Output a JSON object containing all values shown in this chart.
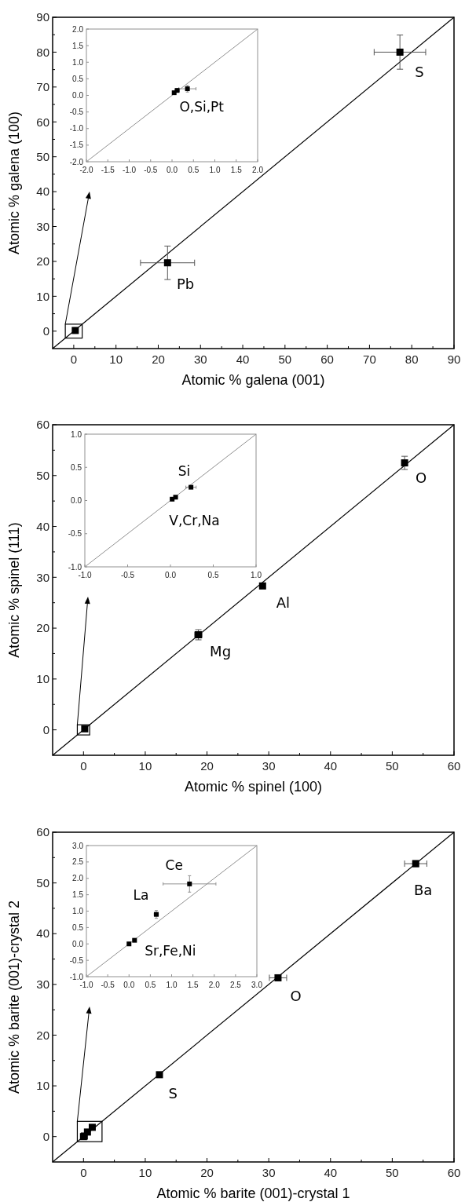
{
  "chart_data": [
    {
      "type": "scatter",
      "xlabel": "Atomic % galena (001)",
      "ylabel": "Atomic % galena (100)",
      "xlim": [
        -5,
        90
      ],
      "ylim": [
        -5,
        90
      ],
      "marker": "square",
      "xticks": [
        0,
        {
          "value": 5,
          "label": null
        },
        10,
        {
          "value": 15,
          "label": null
        },
        20,
        {
          "value": 25,
          "label": null
        },
        30,
        {
          "value": 35,
          "label": null
        },
        40,
        {
          "value": 45,
          "label": null
        },
        50,
        {
          "value": 55,
          "label": null
        },
        60,
        {
          "value": 65,
          "label": null
        },
        70,
        {
          "value": 75,
          "label": null
        },
        80,
        {
          "value": 85,
          "label": null
        },
        90
      ],
      "yticks": [
        0,
        {
          "value": 5,
          "label": null
        },
        10,
        {
          "value": 15,
          "label": null
        },
        20,
        {
          "value": 25,
          "label": null
        },
        30,
        {
          "value": 35,
          "label": null
        },
        40,
        {
          "value": 45,
          "label": null
        },
        50,
        {
          "value": 55,
          "label": null
        },
        60,
        {
          "value": 65,
          "label": null
        },
        70,
        {
          "value": 75,
          "label": null
        },
        80,
        {
          "value": 85,
          "label": null
        },
        90
      ],
      "series": [
        {
          "color": "#000000",
          "x": [
            0.36,
            22.2,
            77.2
          ],
          "values": [
            0.2,
            19.6,
            80
          ],
          "errors": [
            null,
            4.8,
            4.9
          ],
          "xerrors": [
            null,
            6.4,
            6.1
          ]
        },
        {
          "type": "line",
          "color": "#000000",
          "marker": "none",
          "x": [
            -5,
            90
          ],
          "values": [
            -5,
            90
          ]
        }
      ],
      "annotations": [
        "Pb",
        "S"
      ]
    },
    {
      "type": "scatter",
      "xlim": [
        -2,
        2
      ],
      "ylim": [
        -2,
        2
      ],
      "marker": "square",
      "xticks": [
        {
          "value": -2,
          "label": "-2.0"
        },
        {
          "value": -1.5,
          "label": "-1.5"
        },
        {
          "value": -1,
          "label": "-1.0"
        },
        {
          "value": -0.5,
          "label": "-0.5"
        },
        {
          "value": 0,
          "label": "0.0"
        },
        0.5,
        {
          "value": 1,
          "label": "1.0"
        },
        1.5,
        {
          "value": 2,
          "label": "2.0"
        }
      ],
      "yticks": [
        {
          "value": -2,
          "label": "-2.0"
        },
        {
          "value": -1.5,
          "label": "-1.5"
        },
        {
          "value": -1,
          "label": "-1.0"
        },
        {
          "value": -0.5,
          "label": "-0.5"
        },
        {
          "value": 0,
          "label": "0.0"
        },
        0.5,
        {
          "value": 1,
          "label": "1.0"
        },
        1.5,
        {
          "value": 2,
          "label": "2.0"
        }
      ],
      "series": [
        {
          "color": "#000000",
          "x": [
            0.05,
            0.12,
            0.36
          ],
          "values": [
            0.08,
            0.15,
            0.2
          ],
          "errors": [
            0.03,
            0.05,
            0.1
          ],
          "xerrors": [
            0.03,
            0.05,
            0.2
          ]
        },
        {
          "type": "line",
          "color": "#909090",
          "marker": "none",
          "x": [
            -2,
            2
          ],
          "values": [
            -2,
            2
          ]
        }
      ],
      "annotations": [
        "O,Si,Pt"
      ]
    },
    {
      "type": "scatter",
      "xlabel": "Atomic % spinel (100)",
      "ylabel": "Atomic % spinel (111)",
      "xlim": [
        -5,
        60
      ],
      "ylim": [
        -5,
        60
      ],
      "marker": "square",
      "xticks": [
        0,
        {
          "value": 5,
          "label": null
        },
        10,
        {
          "value": 15,
          "label": null
        },
        20,
        {
          "value": 25,
          "label": null
        },
        30,
        {
          "value": 35,
          "label": null
        },
        40,
        {
          "value": 45,
          "label": null
        },
        50,
        {
          "value": 55,
          "label": null
        },
        60
      ],
      "yticks": [
        0,
        {
          "value": 5,
          "label": null
        },
        10,
        {
          "value": 15,
          "label": null
        },
        20,
        {
          "value": 25,
          "label": null
        },
        30,
        {
          "value": 35,
          "label": null
        },
        40,
        {
          "value": 45,
          "label": null
        },
        50,
        {
          "value": 55,
          "label": null
        },
        60
      ],
      "series": [
        {
          "color": "#000000",
          "x": [
            0.2,
            18.6,
            29.0,
            52.0
          ],
          "values": [
            0.2,
            18.7,
            28.3,
            52.5
          ],
          "errors": [
            null,
            1.0,
            0.4,
            1.3
          ],
          "xerrors": [
            null,
            0.6,
            0.3,
            0.3
          ]
        },
        {
          "type": "line",
          "color": "#000000",
          "marker": "none",
          "x": [
            -5,
            60
          ],
          "values": [
            -5,
            60
          ]
        }
      ],
      "annotations": [
        "Mg",
        "Al",
        "O"
      ]
    },
    {
      "type": "scatter",
      "xlim": [
        -1,
        1
      ],
      "ylim": [
        -1,
        1
      ],
      "marker": "square",
      "xticks": [
        {
          "value": -1,
          "label": "-1.0"
        },
        -0.5,
        {
          "value": 0,
          "label": "0.0"
        },
        0.5,
        {
          "value": 1,
          "label": "1.0"
        }
      ],
      "yticks": [
        {
          "value": -1,
          "label": "-1.0"
        },
        -0.5,
        {
          "value": 0,
          "label": "0.0"
        },
        0.5,
        {
          "value": 1,
          "label": "1.0"
        }
      ],
      "series": [
        {
          "color": "#000000",
          "x": [
            0.02,
            0.06,
            0.24
          ],
          "values": [
            0.02,
            0.05,
            0.2
          ],
          "errors": [
            0.02,
            0.02,
            0.02
          ],
          "xerrors": [
            0.02,
            0.02,
            0.06
          ]
        },
        {
          "type": "line",
          "color": "#909090",
          "marker": "none",
          "x": [
            -1,
            1
          ],
          "values": [
            -1,
            1
          ]
        }
      ],
      "annotations": [
        "Si",
        "V,Cr,Na"
      ]
    },
    {
      "type": "scatter",
      "xlabel": "Atomic % barite (001)-crystal 1",
      "ylabel": "Atomic % barite (001)-crystal 2",
      "xlim": [
        -5,
        60
      ],
      "ylim": [
        -5,
        60
      ],
      "marker": "square",
      "xticks": [
        0,
        {
          "value": 5,
          "label": null
        },
        10,
        {
          "value": 15,
          "label": null
        },
        20,
        {
          "value": 25,
          "label": null
        },
        30,
        {
          "value": 35,
          "label": null
        },
        40,
        {
          "value": 45,
          "label": null
        },
        50,
        {
          "value": 55,
          "label": null
        },
        60
      ],
      "yticks": [
        0,
        {
          "value": 5,
          "label": null
        },
        10,
        {
          "value": 15,
          "label": null
        },
        20,
        {
          "value": 25,
          "label": null
        },
        30,
        {
          "value": 35,
          "label": null
        },
        40,
        {
          "value": 45,
          "label": null
        },
        50,
        {
          "value": 55,
          "label": null
        },
        60
      ],
      "series": [
        {
          "color": "#000000",
          "x": [
            0.0,
            0.13,
            0.64,
            1.42,
            12.3,
            31.5,
            53.8
          ],
          "values": [
            0.0,
            0.11,
            0.9,
            1.83,
            12.2,
            31.3,
            53.8
          ],
          "errors": [
            null,
            null,
            null,
            null,
            0.3,
            0.6,
            0.6
          ],
          "xerrors": [
            null,
            null,
            null,
            null,
            0.3,
            1.4,
            1.8
          ]
        },
        {
          "type": "line",
          "color": "#000000",
          "marker": "none",
          "x": [
            -5,
            60
          ],
          "values": [
            -5,
            60
          ]
        }
      ],
      "annotations": [
        "S",
        "O",
        "Ba"
      ]
    },
    {
      "type": "scatter",
      "xlim": [
        -1,
        3
      ],
      "ylim": [
        -1,
        3
      ],
      "marker": "square",
      "xticks": [
        {
          "value": -1,
          "label": "-1.0"
        },
        -0.5,
        {
          "value": 0,
          "label": "0.0"
        },
        0.5,
        {
          "value": 1,
          "label": "1.0"
        },
        1.5,
        {
          "value": 2,
          "label": "2.0"
        },
        2.5,
        {
          "value": 3,
          "label": "3.0"
        }
      ],
      "yticks": [
        {
          "value": -1,
          "label": "-1.0"
        },
        -0.5,
        {
          "value": 0,
          "label": "0.0"
        },
        0.5,
        {
          "value": 1,
          "label": "1.0"
        },
        1.5,
        {
          "value": 2,
          "label": "2.0"
        },
        2.5,
        {
          "value": 3,
          "label": "3.0"
        }
      ],
      "series": [
        {
          "color": "#000000",
          "x": [
            0.0,
            0.13,
            0.64,
            1.42
          ],
          "values": [
            0.0,
            0.11,
            0.9,
            1.83
          ],
          "errors": [
            0.03,
            0.04,
            0.12,
            0.25
          ],
          "xerrors": [
            0.03,
            0.04,
            0.05,
            0.62
          ]
        },
        {
          "type": "line",
          "color": "#909090",
          "marker": "none",
          "x": [
            -1,
            3
          ],
          "values": [
            -1,
            3
          ]
        }
      ],
      "annotations": [
        "Sr,Fe,Ni",
        "La",
        "Ce"
      ]
    }
  ]
}
